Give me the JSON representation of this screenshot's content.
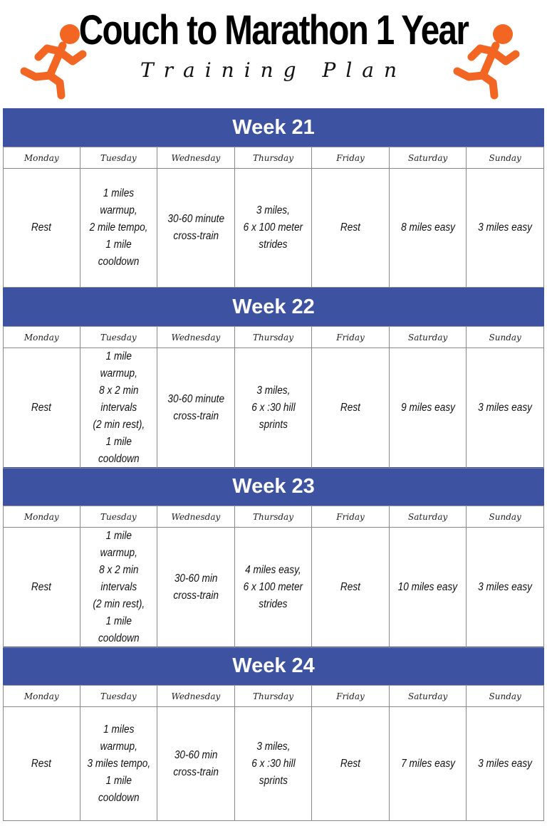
{
  "header": {
    "title": "Couch to Marathon 1 Year",
    "subtitle": "Training Plan",
    "icon": "runner-icon",
    "icon_color": "#f26522"
  },
  "colors": {
    "week_header": "#3d52a0"
  },
  "days": [
    "Monday",
    "Tuesday",
    "Wednesday",
    "Thursday",
    "Friday",
    "Saturday",
    "Sunday"
  ],
  "weeks": [
    {
      "label": "Week 21",
      "tasks": [
        "Rest",
        "1 miles\nwarmup,\n2 mile tempo,\n1 mile\ncooldown",
        "30-60 minute\ncross-train",
        "3 miles,\n6 x 100 meter\nstrides",
        "Rest",
        "8  miles easy",
        "3  miles easy"
      ]
    },
    {
      "label": "Week 22",
      "tasks": [
        "Rest",
        "1 mile warmup,\n8 x 2 min\nintervals\n(2 min rest),\n1 mile cooldown",
        "30-60 minute\ncross-train",
        "3 miles,\n6 x :30 hill\nsprints",
        "Rest",
        "9 miles easy",
        "3 miles easy"
      ]
    },
    {
      "label": "Week 23",
      "tasks": [
        "Rest",
        "1 mile warmup,\n8 x 2 min\nintervals\n(2 min rest),\n1 mile cooldown",
        "30-60 min\ncross-train",
        "4 miles easy,\n6 x 100 meter\nstrides",
        "Rest",
        "10 miles easy",
        "3 miles easy"
      ]
    },
    {
      "label": "Week 24",
      "tasks": [
        "Rest",
        "1 miles warmup,\n3 miles tempo,\n1 mile cooldown",
        "30-60 min\ncross-train",
        "3 miles,\n6 x :30 hill\nsprints",
        "Rest",
        "7 miles easy",
        "3 miles easy"
      ]
    }
  ]
}
